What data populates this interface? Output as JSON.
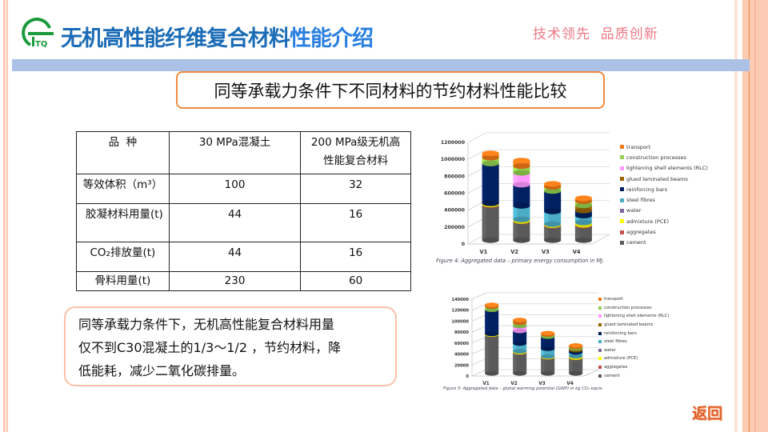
{
  "header": {
    "title_main": "无机高性能纤维复合材料",
    "title_accent": "性能介绍",
    "slogan": "技术领先  品质创新",
    "logo_icon": "gtq-logo-icon"
  },
  "subtitle": "同等承载力条件下不同材料的节约材料性能比较",
  "table": {
    "headers": [
      "品  种",
      "30 MPa混凝土",
      "200 MPa级无机高性能复合材料"
    ],
    "rows": [
      {
        "label": "等效体积（m³）",
        "concrete": "100",
        "composite": "32"
      },
      {
        "label": "胶凝材料用量(t)",
        "concrete": "44",
        "composite": "16"
      },
      {
        "label": "CO₂排放量(t)",
        "concrete": "44",
        "composite": "16"
      },
      {
        "label": "骨料用量(t)",
        "concrete": "230",
        "composite": "60"
      }
    ]
  },
  "note": {
    "lines": [
      "同等承载力条件下，无机高性能复合材料用量",
      "仅不到C30混凝土的1/3～1/2 ，节约材料，降",
      "低能耗，减少二氧化碳排量。"
    ]
  },
  "back_button": {
    "label": "返回",
    "icon": "return-icon"
  },
  "colors": {
    "title_blue": "#1a6bb5",
    "title_accent_blue": "#2a7fe0",
    "slogan_pink": "#ee7a86",
    "header_bar": "#abc1e6",
    "accent_orange": "#f08a40",
    "border_peach": "#fdcab4"
  },
  "chart_data": [
    {
      "type": "bar",
      "stacked": true,
      "style": "3d-cylinder",
      "title": "",
      "caption": "Figure 4: Aggregated data – primary energy consumption in MJ.",
      "xlabel": "",
      "ylabel": "",
      "ylim": [
        0,
        1200000
      ],
      "yticks": [
        "0",
        "200000",
        "400000",
        "600000",
        "800000",
        "1000000",
        "1200000"
      ],
      "categories": [
        "V1",
        "V2",
        "V3",
        "V4"
      ],
      "legend_position": "right",
      "series": [
        {
          "name": "cement",
          "color": "#5a5a5a",
          "values": [
            410000,
            220000,
            170000,
            170000
          ]
        },
        {
          "name": "aggregates",
          "color": "#c0504d",
          "values": [
            10000,
            5000,
            5000,
            10000
          ]
        },
        {
          "name": "admixture (PCE)",
          "color": "#ffff00",
          "values": [
            15000,
            20000,
            15000,
            30000
          ]
        },
        {
          "name": "water",
          "color": "#8064a2",
          "values": [
            0,
            0,
            0,
            0
          ]
        },
        {
          "name": "steel fibres",
          "color": "#4bacc6",
          "values": [
            0,
            160000,
            150000,
            80000
          ]
        },
        {
          "name": "reinforcing bars",
          "color": "#002060",
          "values": [
            470000,
            250000,
            240000,
            60000
          ]
        },
        {
          "name": "glued laminated beams",
          "color": "#996600",
          "values": [
            0,
            0,
            0,
            60000
          ]
        },
        {
          "name": "lightening shell elements (RLC)",
          "color": "#ff99ff",
          "values": [
            0,
            140000,
            0,
            0
          ]
        },
        {
          "name": "construction processes",
          "color": "#92d050",
          "values": [
            70000,
            80000,
            50000,
            50000
          ]
        },
        {
          "name": "transport",
          "color": "#f07818",
          "values": [
            50000,
            65000,
            35000,
            35000
          ]
        }
      ]
    },
    {
      "type": "bar",
      "stacked": true,
      "style": "3d-cylinder",
      "title": "",
      "caption": "Figure 5: Aggregated data – global warming potential (GWP) in kg CO₂ equiv.",
      "xlabel": "",
      "ylabel": "",
      "ylim": [
        0,
        140000
      ],
      "yticks": [
        "0",
        "20000",
        "40000",
        "60000",
        "80000",
        "100000",
        "120000",
        "140000"
      ],
      "categories": [
        "V1",
        "V2",
        "V3",
        "V4"
      ],
      "legend_position": "right",
      "series": [
        {
          "name": "cement",
          "color": "#5a5a5a",
          "values": [
            70000,
            38000,
            29000,
            28000
          ]
        },
        {
          "name": "aggregates",
          "color": "#c0504d",
          "values": [
            500,
            500,
            500,
            500
          ]
        },
        {
          "name": "admixture (PCE)",
          "color": "#ffff00",
          "values": [
            1500,
            2000,
            1500,
            3000
          ]
        },
        {
          "name": "water",
          "color": "#8064a2",
          "values": [
            0,
            0,
            0,
            0
          ]
        },
        {
          "name": "steel fibres",
          "color": "#4bacc6",
          "values": [
            0,
            14000,
            14000,
            7000
          ]
        },
        {
          "name": "reinforcing bars",
          "color": "#002060",
          "values": [
            44000,
            23000,
            22000,
            4000
          ]
        },
        {
          "name": "glued laminated beams",
          "color": "#996600",
          "values": [
            0,
            0,
            0,
            3000
          ]
        },
        {
          "name": "lightening shell elements (RLC)",
          "color": "#ff99ff",
          "values": [
            0,
            9000,
            0,
            0
          ]
        },
        {
          "name": "construction processes",
          "color": "#92d050",
          "values": [
            6000,
            6000,
            4000,
            3000
          ]
        },
        {
          "name": "transport",
          "color": "#f07818",
          "values": [
            3000,
            5000,
            2500,
            2500
          ]
        }
      ]
    }
  ]
}
